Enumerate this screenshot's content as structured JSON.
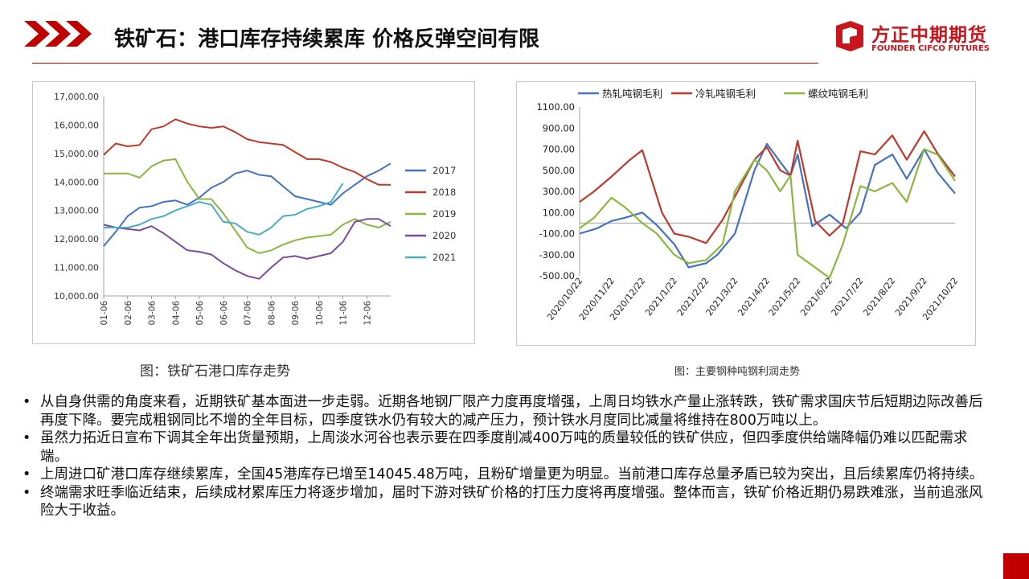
{
  "header": {
    "title": "铁矿石：港口库存持续累库  价格反弹空间有限",
    "logo_cn": "方正中期期货",
    "logo_en": "FOUNDER CIFCO FUTURES",
    "accent_color": "#c00000"
  },
  "captions": {
    "left": "图：铁矿石港口库存走势",
    "right": "图：主要钢种吨钢利润走势"
  },
  "bullets": [
    "从自身供需的角度来看，近期铁矿基本面进一步走弱。近期各地钢厂限产力度再度增强，上周日均铁水产量止涨转跌，铁矿需求国庆节后短期边际改善后再度下降。要完成粗钢同比不增的全年目标，四季度铁水仍有较大的减产压力，预计铁水月度同比减量将维持在800万吨以上。",
    "虽然力拓近日宣布下调其全年出货量预期，上周淡水河谷也表示要在四季度削减400万吨的质量较低的铁矿供应，但四季度供给端降幅仍难以匹配需求端。",
    "上周进口矿港口库存继续累库，全国45港库存已增至14045.48万吨，且粉矿增量更为明显。当前港口库存总量矛盾已较为突出，且后续累库仍将持续。",
    "终端需求旺季临近结束，后续成材累库压力将逐步增加，届时下游对铁矿价格的打压力度将再度增强。整体而言，铁矿价格近期仍易跌难涨，当前追涨风险大于收益。"
  ],
  "chart_data": [
    {
      "type": "line",
      "title": "",
      "xlabel": "",
      "ylabel": "",
      "x_ticks": [
        "01-06",
        "02-06",
        "03-06",
        "04-06",
        "05-06",
        "06-06",
        "07-06",
        "08-06",
        "09-06",
        "10-06",
        "11-06",
        "12-06"
      ],
      "y_ticks": [
        "10,000.00",
        "11,000.00",
        "12,000.00",
        "13,000.00",
        "14,000.00",
        "15,000.00",
        "16,000.00",
        "17,000.00"
      ],
      "ylim": [
        10000,
        17000
      ],
      "x_range": [
        1,
        13
      ],
      "grid": false,
      "legend_position": "right",
      "series": [
        {
          "name": "2017",
          "color": "#4472c4",
          "x": [
            1,
            1.5,
            2,
            2.5,
            3,
            3.5,
            4,
            4.5,
            5,
            5.5,
            6,
            6.5,
            7,
            7.5,
            8,
            8.5,
            9,
            9.5,
            10,
            10.5,
            11,
            11.5,
            12,
            12.5,
            13
          ],
          "values": [
            11750,
            12250,
            12800,
            13100,
            13150,
            13300,
            13350,
            13200,
            13450,
            13800,
            14000,
            14300,
            14400,
            14250,
            14200,
            13850,
            13500,
            13400,
            13300,
            13200,
            13600,
            13900,
            14200,
            14400,
            14650
          ]
        },
        {
          "name": "2018",
          "color": "#c0392b",
          "x": [
            1,
            1.5,
            2,
            2.5,
            3,
            3.5,
            4,
            4.5,
            5,
            5.5,
            6,
            6.5,
            7,
            7.5,
            8,
            8.5,
            9,
            9.5,
            10,
            10.5,
            11,
            11.5,
            12,
            12.5,
            13
          ],
          "values": [
            14950,
            15350,
            15250,
            15300,
            15850,
            15950,
            16200,
            16050,
            15950,
            15900,
            15950,
            15750,
            15500,
            15400,
            15350,
            15300,
            15050,
            14800,
            14800,
            14700,
            14500,
            14350,
            14100,
            13900,
            13900
          ]
        },
        {
          "name": "2019",
          "color": "#8db63f",
          "x": [
            1,
            1.5,
            2,
            2.5,
            3,
            3.5,
            4,
            4.5,
            5,
            5.5,
            6,
            6.5,
            7,
            7.5,
            8,
            8.5,
            9,
            9.5,
            10,
            10.5,
            11,
            11.5,
            12,
            12.5,
            13
          ],
          "values": [
            14300,
            14300,
            14300,
            14150,
            14550,
            14750,
            14800,
            14000,
            13400,
            13400,
            12900,
            12300,
            11700,
            11500,
            11600,
            11800,
            11950,
            12050,
            12100,
            12150,
            12500,
            12700,
            12500,
            12400,
            12600
          ]
        },
        {
          "name": "2020",
          "color": "#7d4aa1",
          "x": [
            1,
            1.5,
            2,
            2.5,
            3,
            3.5,
            4,
            4.5,
            5,
            5.5,
            6,
            6.5,
            7,
            7.5,
            8,
            8.5,
            9,
            9.5,
            10,
            10.5,
            11,
            11.5,
            12,
            12.5,
            13
          ],
          "values": [
            12500,
            12400,
            12350,
            12300,
            12450,
            12200,
            11900,
            11600,
            11550,
            11450,
            11150,
            10900,
            10700,
            10600,
            11000,
            11350,
            11400,
            11300,
            11400,
            11500,
            11900,
            12600,
            12700,
            12700,
            12450
          ]
        },
        {
          "name": "2021",
          "color": "#4bacc6",
          "x": [
            1,
            1.5,
            2,
            2.5,
            3,
            3.5,
            4,
            4.5,
            5,
            5.5,
            6,
            6.5,
            7,
            7.5,
            8,
            8.5,
            9,
            9.5,
            10,
            10.5,
            11
          ],
          "values": [
            12400,
            12400,
            12400,
            12500,
            12700,
            12800,
            13000,
            13150,
            13300,
            13200,
            12600,
            12550,
            12250,
            12150,
            12400,
            12800,
            12850,
            13050,
            13150,
            13300,
            13950
          ]
        }
      ]
    },
    {
      "type": "line",
      "title": "",
      "xlabel": "",
      "ylabel": "",
      "x_ticks": [
        "2020/10/22",
        "2020/11/22",
        "2020/12/22",
        "2021/1/22",
        "2021/2/22",
        "2021/3/22",
        "2021/4/22",
        "2021/5/22",
        "2021/6/22",
        "2021/7/22",
        "2021/8/22",
        "2021/9/22",
        "2021/10/22"
      ],
      "y_ticks": [
        "-500.00",
        "-300.00",
        "-100.00",
        "100.00",
        "300.00",
        "500.00",
        "700.00",
        "900.00",
        "1100.00"
      ],
      "ylim": [
        -500,
        1100
      ],
      "x_range": [
        "2020-10-22",
        "2021-10-22"
      ],
      "grid": false,
      "legend_position": "top",
      "series": [
        {
          "name": "热轧吨钢毛利",
          "color": "#4472c4",
          "x": [
            "2020-10-22",
            "2020-11-08",
            "2020-11-22",
            "2020-12-05",
            "2020-12-22",
            "2021-01-05",
            "2021-01-22",
            "2021-02-05",
            "2021-02-22",
            "2021-03-05",
            "2021-03-22",
            "2021-04-10",
            "2021-04-22",
            "2021-05-05",
            "2021-05-15",
            "2021-05-22",
            "2021-06-05",
            "2021-06-22",
            "2021-07-08",
            "2021-07-22",
            "2021-08-05",
            "2021-08-22",
            "2021-09-05",
            "2021-09-22",
            "2021-10-05",
            "2021-10-22"
          ],
          "values": [
            -100,
            -50,
            20,
            50,
            100,
            -20,
            -200,
            -420,
            -380,
            -300,
            -100,
            500,
            750,
            580,
            450,
            650,
            -30,
            80,
            -50,
            100,
            550,
            650,
            420,
            700,
            480,
            280
          ]
        },
        {
          "name": "冷轧吨钢毛利",
          "color": "#c0392b",
          "x": [
            "2020-10-22",
            "2020-11-05",
            "2020-11-22",
            "2020-12-10",
            "2020-12-22",
            "2021-01-10",
            "2021-01-22",
            "2021-02-05",
            "2021-02-22",
            "2021-03-10",
            "2021-03-22",
            "2021-04-10",
            "2021-04-22",
            "2021-05-05",
            "2021-05-15",
            "2021-05-22",
            "2021-06-08",
            "2021-06-22",
            "2021-07-05",
            "2021-07-22",
            "2021-08-05",
            "2021-08-22",
            "2021-09-05",
            "2021-09-22",
            "2021-10-05",
            "2021-10-22"
          ],
          "values": [
            200,
            300,
            440,
            600,
            690,
            100,
            -100,
            -130,
            -190,
            30,
            250,
            600,
            720,
            500,
            450,
            780,
            20,
            -120,
            0,
            680,
            650,
            830,
            600,
            870,
            660,
            440
          ]
        },
        {
          "name": "螺纹吨钢毛利",
          "color": "#8db63f",
          "x": [
            "2020-10-22",
            "2020-11-05",
            "2020-11-22",
            "2020-12-05",
            "2020-12-22",
            "2021-01-05",
            "2021-01-22",
            "2021-02-05",
            "2021-02-22",
            "2021-03-10",
            "2021-03-22",
            "2021-04-10",
            "2021-04-22",
            "2021-05-05",
            "2021-05-15",
            "2021-05-22",
            "2021-06-05",
            "2021-06-22",
            "2021-07-05",
            "2021-07-22",
            "2021-08-05",
            "2021-08-22",
            "2021-09-05",
            "2021-09-22",
            "2021-10-05",
            "2021-10-22"
          ],
          "values": [
            -50,
            50,
            240,
            150,
            0,
            -100,
            -300,
            -380,
            -350,
            -200,
            300,
            600,
            500,
            300,
            450,
            -300,
            -400,
            -520,
            -200,
            350,
            300,
            380,
            200,
            700,
            650,
            400
          ]
        }
      ]
    }
  ]
}
